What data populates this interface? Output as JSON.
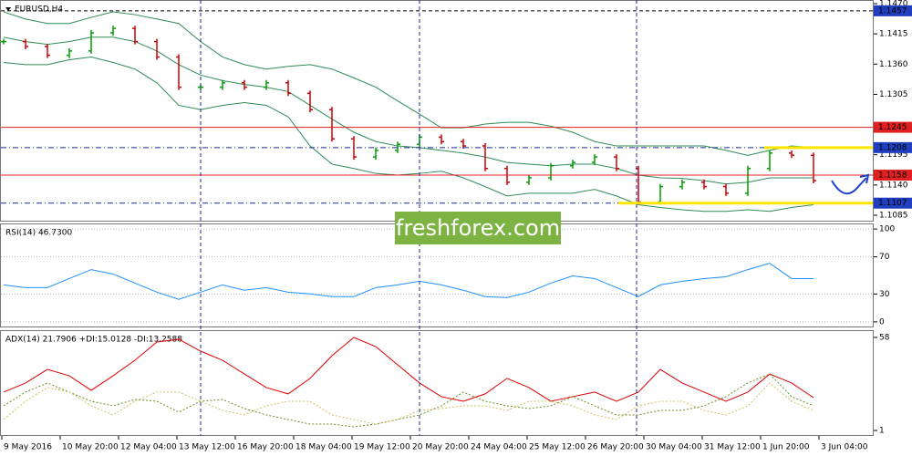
{
  "chart_data": [
    {
      "type": "ohlc",
      "title": "EURUSD,H4",
      "ylim": [
        1.1075,
        1.1475
      ],
      "yticks": [
        {
          "value": 1.147,
          "label": "1.1470"
        },
        1.1415,
        {
          "value": 1.136,
          "label": "1.1360"
        },
        1.1305,
        1.1195,
        {
          "value": 1.114,
          "label": "1.1140"
        },
        1.1085
      ],
      "up_color": "#00a000",
      "down_color": "#d00000",
      "band_color": "#2e8b57",
      "values": [
        1.1401,
        1.1392,
        1.1376,
        1.1384,
        1.1417,
        1.1425,
        1.1401,
        1.1373,
        1.1318,
        1.1318,
        1.1326,
        1.1318,
        1.1326,
        1.1307,
        1.1277,
        1.1224,
        1.1191,
        1.1203,
        1.1214,
        1.1227,
        1.1219,
        1.1211,
        1.117,
        1.1145,
        1.1153,
        1.1175,
        1.1181,
        1.1191,
        1.117,
        1.1109,
        1.1137,
        1.1145,
        1.1137,
        1.1125,
        1.117,
        1.1198,
        1.1194,
        1.1148
      ],
      "upper": [
        1.1455,
        1.1442,
        1.1434,
        1.1434,
        1.1445,
        1.1455,
        1.145,
        1.1442,
        1.1434,
        1.1401,
        1.1373,
        1.1359,
        1.1351,
        1.1356,
        1.1359,
        1.1351,
        1.1335,
        1.1318,
        1.1293,
        1.1269,
        1.1244,
        1.1244,
        1.1251,
        1.1254,
        1.1254,
        1.1247,
        1.1236,
        1.1219,
        1.1211,
        1.1211,
        1.1211,
        1.1211,
        1.1211,
        1.1203,
        1.1194,
        1.1203,
        1.1211,
        1.1208
      ],
      "middle": [
        1.1409,
        1.1401,
        1.1396,
        1.1401,
        1.1409,
        1.1409,
        1.1401,
        1.1384,
        1.1359,
        1.134,
        1.133,
        1.1323,
        1.1318,
        1.131,
        1.1285,
        1.126,
        1.1236,
        1.1219,
        1.1211,
        1.1208,
        1.1203,
        1.1198,
        1.1191,
        1.1181,
        1.1178,
        1.1175,
        1.1178,
        1.1178,
        1.117,
        1.1158,
        1.1153,
        1.1152,
        1.1148,
        1.1142,
        1.1145,
        1.1153,
        1.1153,
        1.1153
      ],
      "lower": [
        1.1363,
        1.1359,
        1.1359,
        1.1368,
        1.1373,
        1.1363,
        1.1351,
        1.1326,
        1.1285,
        1.1277,
        1.1285,
        1.129,
        1.1285,
        1.1264,
        1.1211,
        1.1178,
        1.117,
        1.1161,
        1.1158,
        1.1161,
        1.1165,
        1.1153,
        1.1137,
        1.112,
        1.1125,
        1.1125,
        1.1125,
        1.1132,
        1.112,
        1.1104,
        1.1099,
        1.1095,
        1.1092,
        1.1092,
        1.1095,
        1.1092,
        1.1099,
        1.1104
      ],
      "levels": [
        {
          "value": 1.1457,
          "color": "#1f3fbf",
          "line_color": "#000000",
          "dash": "4 3"
        },
        {
          "value": 1.1245,
          "color": "#e02020",
          "line_color": "#e02020",
          "dash": "none"
        },
        {
          "value": 1.1208,
          "color": "#1f3fbf",
          "line_color": "#1a2a9a",
          "dash": "6 3 1 3",
          "highlight": "#ffe600"
        },
        {
          "value": 1.1158,
          "color": "#e02020",
          "line_color": "#e02020",
          "dash": "none"
        },
        {
          "value": 1.1107,
          "color": "#1f3fbf",
          "line_color": "#1a2a9a",
          "dash": "6 3 1 3",
          "highlight": "#ffe600"
        }
      ]
    },
    {
      "type": "line",
      "title": "RSI(14) 46.7300",
      "ylim": [
        -5,
        105
      ],
      "yticks": [
        100,
        70,
        30,
        0
      ],
      "grid": true,
      "series": [
        {
          "color": "#1e90ff",
          "dash": "none",
          "values": [
            39.8,
            36.9,
            36.9,
            46.6,
            56.3,
            51.5,
            41.7,
            32.0,
            24.3,
            32.0,
            39.8,
            34.0,
            36.9,
            32.0,
            30.1,
            27.2,
            27.2,
            36.9,
            39.8,
            43.7,
            39.8,
            34.0,
            27.2,
            26.2,
            32.0,
            41.7,
            49.5,
            46.6,
            36.9,
            27.2,
            39.8,
            43.7,
            46.6,
            48.5,
            56.3,
            63.1,
            46.6,
            46.6
          ]
        }
      ]
    },
    {
      "type": "line",
      "title": "ADX(14) 21.7906 +DI:15.0128 -DI:13.2588",
      "ylim": [
        -1.8,
        61.9
      ],
      "yticks": [
        58,
        1
      ],
      "grid": false,
      "series": [
        {
          "color": "#dd0000",
          "dash": "none",
          "values": [
            24.5,
            30.1,
            38.4,
            34.5,
            25.6,
            34.5,
            44.0,
            55.2,
            56.9,
            49.6,
            44.0,
            35.6,
            27.3,
            23.4,
            32.9,
            46.8,
            58.0,
            52.4,
            41.2,
            30.1,
            21.7,
            18.9,
            23.4,
            32.9,
            27.3,
            18.9,
            21.7,
            24.5,
            18.9,
            24.5,
            38.4,
            30.1,
            24.5,
            18.9,
            24.5,
            35.6,
            30.1,
            21.1
          ]
        },
        {
          "color": "#6b8e23",
          "dash": "2 2",
          "values": [
            16.1,
            24.5,
            30.1,
            24.5,
            18.9,
            16.1,
            20.0,
            18.9,
            12.2,
            18.9,
            20.0,
            14.4,
            10.5,
            7.7,
            4.9,
            4.9,
            3.2,
            4.9,
            7.7,
            10.5,
            16.1,
            24.5,
            18.9,
            16.1,
            14.4,
            16.1,
            21.7,
            16.1,
            10.5,
            10.5,
            13.3,
            13.3,
            16.1,
            21.7,
            30.1,
            35.6,
            21.7,
            16.1
          ]
        },
        {
          "color": "#d2c060",
          "dash": "2 2",
          "values": [
            7.7,
            18.9,
            27.3,
            24.5,
            16.1,
            10.5,
            18.9,
            24.5,
            24.5,
            18.9,
            13.3,
            10.5,
            16.1,
            18.9,
            18.9,
            10.5,
            7.7,
            4.9,
            7.7,
            13.3,
            14.4,
            16.1,
            16.1,
            13.3,
            18.9,
            18.9,
            16.1,
            10.5,
            7.7,
            16.1,
            18.9,
            18.9,
            13.3,
            10.5,
            16.1,
            30.1,
            18.9,
            13.3
          ]
        }
      ]
    }
  ],
  "time_axis": [
    "9 May 2016",
    "10 May 20:00",
    "12 May 04:00",
    "13 May 12:00",
    "16 May 20:00",
    "18 May 04:00",
    "19 May 12:00",
    "20 May 20:00",
    "24 May 04:00",
    "25 May 12:00",
    "26 May 20:00",
    "30 May 04:00",
    "31 May 12:00",
    "1 Jun 20:00",
    "3 Jun 04:00"
  ],
  "watermark": "freshforex.com"
}
